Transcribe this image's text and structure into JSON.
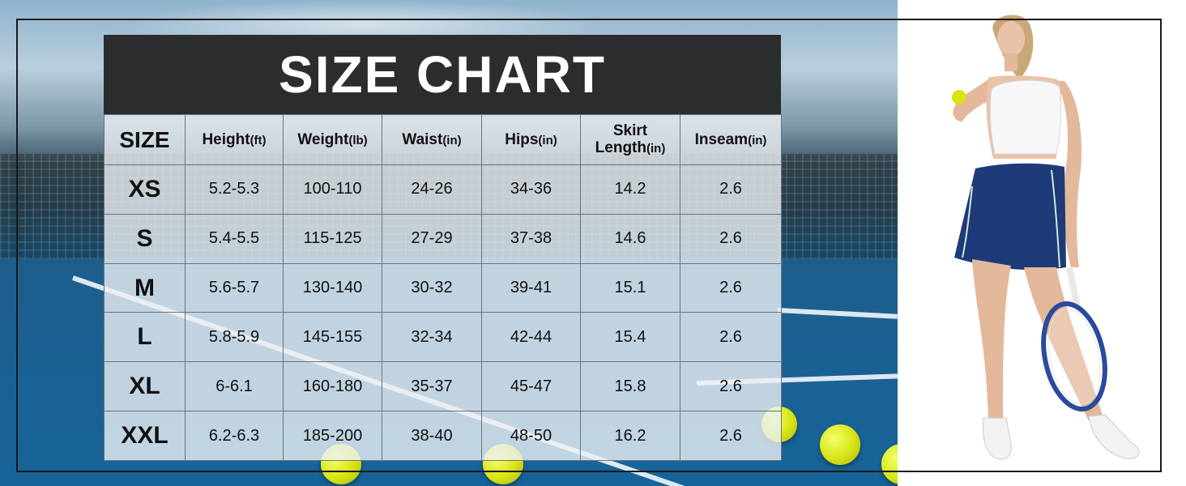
{
  "title": "SIZE CHART",
  "headers": [
    {
      "label": "SIZE",
      "unit": ""
    },
    {
      "label": "Height",
      "unit": "(ft)"
    },
    {
      "label": "Weight",
      "unit": "(lb)"
    },
    {
      "label": "Waist",
      "unit": "(in)"
    },
    {
      "label": "Hips",
      "unit": "(in)"
    },
    {
      "label": "Skirt",
      "label2": "Length",
      "unit": "(in)"
    },
    {
      "label": "Inseam",
      "unit": "(in)"
    }
  ],
  "rows": [
    [
      "XS",
      "5.2-5.3",
      "100-110",
      "24-26",
      "34-36",
      "14.2",
      "2.6"
    ],
    [
      "S",
      "5.4-5.5",
      "115-125",
      "27-29",
      "37-38",
      "14.6",
      "2.6"
    ],
    [
      "M",
      "5.6-5.7",
      "130-140",
      "30-32",
      "39-41",
      "15.1",
      "2.6"
    ],
    [
      "L",
      "5.8-5.9",
      "145-155",
      "32-34",
      "42-44",
      "15.4",
      "2.6"
    ],
    [
      "XL",
      "6-6.1",
      "160-180",
      "35-37",
      "45-47",
      "15.8",
      "2.6"
    ],
    [
      "XXL",
      "6.2-6.3",
      "185-200",
      "38-40",
      "48-50",
      "16.2",
      "2.6"
    ]
  ],
  "colors": {
    "title_bar": "#262626",
    "table_bg": "#ebf0f4",
    "skirt": "#1f3a78",
    "court": "#17649a"
  },
  "icons": [
    "tennis-ball-icon",
    "tennis-racket-icon"
  ]
}
